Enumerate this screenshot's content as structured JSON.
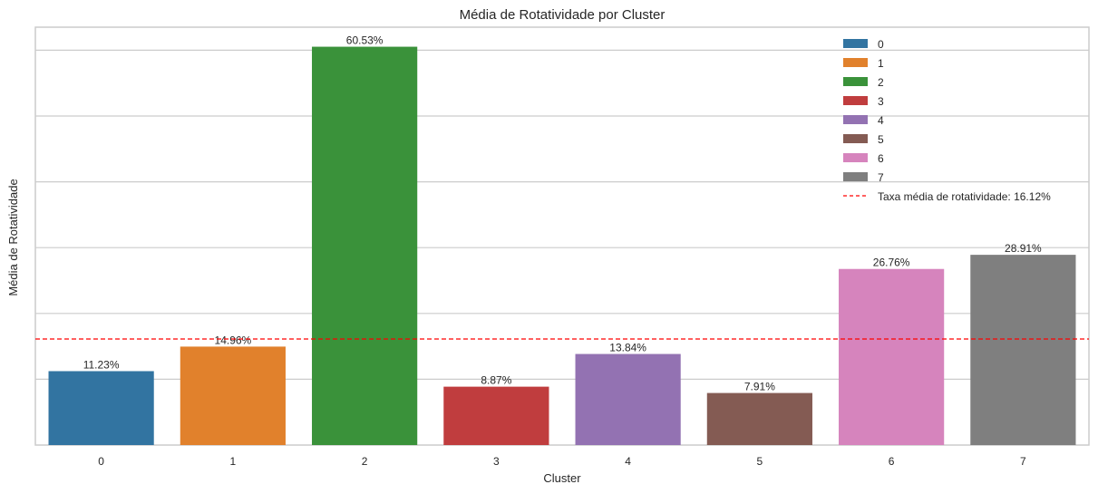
{
  "chart_data": {
    "type": "bar",
    "title": "Média de Rotatividade por Cluster",
    "xlabel": "Cluster",
    "ylabel": "Média de Rotatividade",
    "categories": [
      "0",
      "1",
      "2",
      "3",
      "4",
      "5",
      "6",
      "7"
    ],
    "values": [
      11.23,
      14.96,
      60.53,
      8.87,
      13.84,
      7.91,
      26.76,
      28.91
    ],
    "value_labels": [
      "11.23%",
      "14.96%",
      "60.53%",
      "8.87%",
      "13.84%",
      "7.91%",
      "26.76%",
      "28.91%"
    ],
    "colors": [
      "#3274a1",
      "#e1812c",
      "#3a923a",
      "#c03d3e",
      "#9372b2",
      "#845b53",
      "#d684bd",
      "#7f7f7f"
    ],
    "ylim": [
      0,
      63.5
    ],
    "y_ticks_shown": false,
    "grid": true,
    "reference_line": {
      "value": 16.12,
      "label": "Taxa média de rotatividade: 16.12%",
      "color": "#ff0000",
      "style": "dashed"
    },
    "legend": {
      "placement": "top-right",
      "entries": [
        "0",
        "1",
        "2",
        "3",
        "4",
        "5",
        "6",
        "7",
        "Taxa média de rotatividade: 16.12%"
      ]
    }
  }
}
